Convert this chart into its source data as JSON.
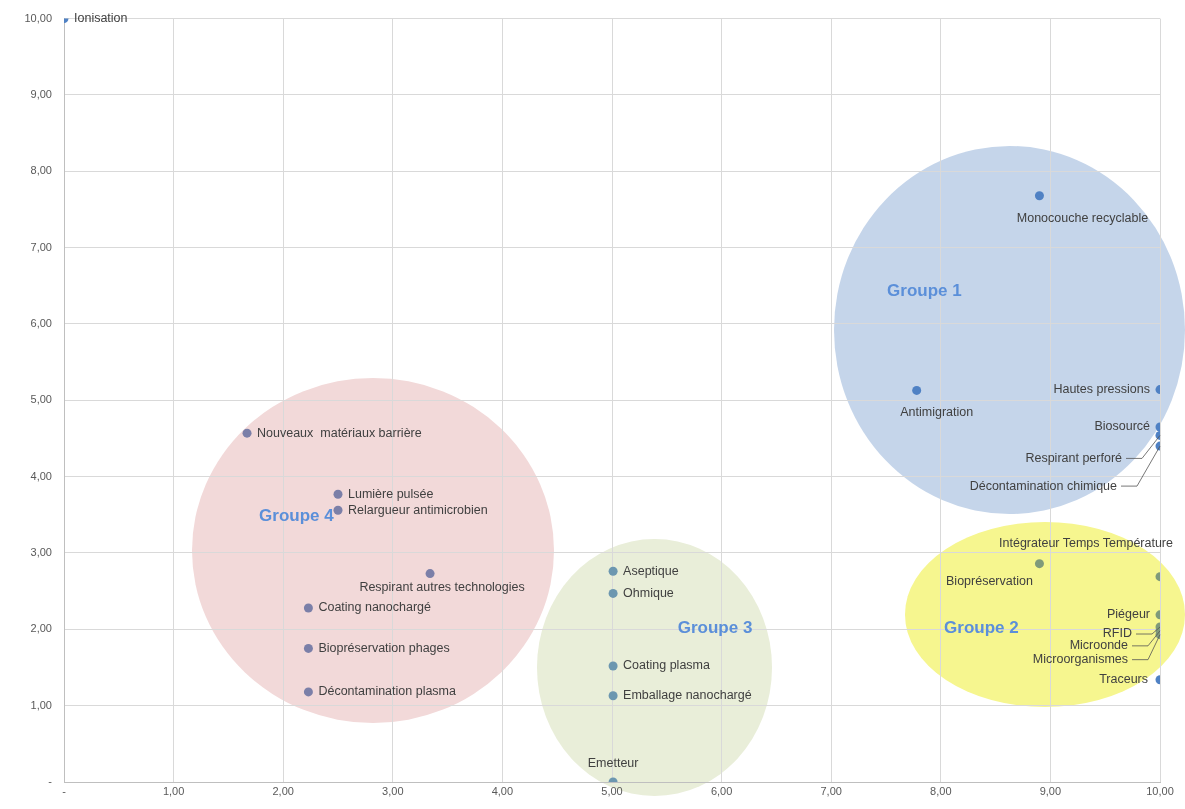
{
  "chart_data": {
    "type": "scatter",
    "marker": "circle",
    "grid": true,
    "legend": false,
    "x": [
      0,
      8.9,
      7.78,
      10,
      10,
      10,
      10,
      1.67,
      2.5,
      2.5,
      3.34,
      2.23,
      2.23,
      2.23,
      5.01,
      5.01,
      5.01,
      5.01,
      5.01,
      10,
      8.9,
      10,
      10,
      10,
      10,
      10
    ],
    "values": [
      10,
      7.68,
      5.13,
      5.14,
      4.65,
      4.54,
      4.4,
      4.57,
      3.77,
      3.56,
      2.73,
      2.28,
      1.75,
      1.18,
      2.76,
      2.47,
      1.52,
      1.13,
      0,
      2.69,
      2.86,
      2.19,
      2.03,
      1.98,
      1.93,
      1.34
    ],
    "value_labels": [
      "Ionisation",
      "Monocouche recyclable",
      "Antimigration",
      "Hautes pressions",
      "Biosourcé",
      "Respirant perforé",
      "Décontamination chimique",
      "Nouveaux  matériaux barrière",
      "Lumière pulsée",
      "Relargueur antimicrobien",
      "Respirant autres technologies",
      "Coating nanochargé",
      "Biopréservation phages",
      "Décontamination plasma",
      "Aseptique",
      "Ohmique",
      "Coating plasma",
      "Emballage nanochargé",
      "Emetteur",
      "Intégrateur Temps Température",
      "Biopréservation",
      "Piégeur",
      "RFID",
      "Microonde",
      "Microorganismes",
      "Traceurs"
    ],
    "colors": [
      "#4f81c4",
      "#4f81c4",
      "#4f81c4",
      "#4f81c4",
      "#4f81c4",
      "#4f81c4",
      "#4f81c4",
      "#7b7fa8",
      "#7b7fa8",
      "#7b7fa8",
      "#7b7fa8",
      "#7b7fa8",
      "#7b7fa8",
      "#7b7fa8",
      "#6c97b0",
      "#6c97b0",
      "#6c97b0",
      "#6c97b0",
      "#6c97b0",
      "#7f9a7a",
      "#7f9a7a",
      "#7f9a7a",
      "#7f9a7a",
      "#7f9a7a",
      "#7f9a7a",
      "#4f81c4"
    ],
    "xlim": [
      0,
      10
    ],
    "ylim": [
      0,
      10
    ],
    "xticks": [
      {
        "value": 0,
        "label": "-"
      },
      {
        "value": 1,
        "label": "1,00"
      },
      {
        "value": 2,
        "label": "2,00"
      },
      {
        "value": 3,
        "label": "3,00"
      },
      {
        "value": 4,
        "label": "4,00"
      },
      {
        "value": 5,
        "label": "5,00"
      },
      {
        "value": 6,
        "label": "6,00"
      },
      {
        "value": 7,
        "label": "7,00"
      },
      {
        "value": 8,
        "label": "8,00"
      },
      {
        "value": 9,
        "label": "9,00"
      },
      {
        "value": 10,
        "label": "10,00"
      }
    ],
    "yticks": [
      {
        "value": 0,
        "label": "-"
      },
      {
        "value": 1,
        "label": "1,00"
      },
      {
        "value": 2,
        "label": "2,00"
      },
      {
        "value": 3,
        "label": "3,00"
      },
      {
        "value": 4,
        "label": "4,00"
      },
      {
        "value": 5,
        "label": "5,00"
      },
      {
        "value": 6,
        "label": "6,00"
      },
      {
        "value": 7,
        "label": "7,00"
      },
      {
        "value": 8,
        "label": "8,00"
      },
      {
        "value": 9,
        "label": "9,00"
      },
      {
        "value": 10,
        "label": "10,00"
      }
    ],
    "annotations": [
      "Groupe 1",
      "Groupe 2",
      "Groupe 3",
      "Groupe 4"
    ]
  }
}
